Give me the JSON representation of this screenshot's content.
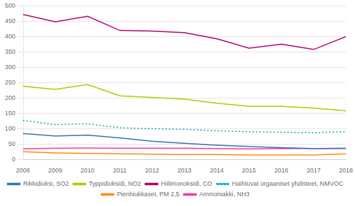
{
  "chart_data": {
    "type": "line",
    "x": [
      2008,
      2009,
      2010,
      2011,
      2012,
      2013,
      2014,
      2015,
      2016,
      2017,
      2018
    ],
    "xlim": [
      2008,
      2018
    ],
    "xticks": [
      2008,
      2009,
      2010,
      2011,
      2012,
      2013,
      2014,
      2015,
      2016,
      2017,
      2018
    ],
    "ylim": [
      0,
      500
    ],
    "yticks": [
      0,
      50,
      100,
      150,
      200,
      250,
      300,
      350,
      400,
      450,
      500
    ],
    "grid": "y",
    "legend": "bottom",
    "series": [
      {
        "name": "Rikkidioksi, SO2",
        "color": "#2E75B6",
        "line_style": "solid",
        "values": [
          84,
          76,
          79,
          70,
          59,
          52,
          46,
          42,
          38,
          35,
          36
        ]
      },
      {
        "name": "Typpidioksidi, NO2",
        "color": "#AACC00",
        "line_style": "solid",
        "values": [
          238,
          228,
          244,
          207,
          202,
          196,
          183,
          173,
          173,
          167,
          158
        ]
      },
      {
        "name": "Hiilimonoksidi, CO",
        "color": "#B5006E",
        "line_style": "solid",
        "values": [
          472,
          448,
          466,
          420,
          418,
          413,
          393,
          362,
          375,
          358,
          400
        ]
      },
      {
        "name": "Haihtuvat orgaaniset yhdisteet, NMVOC",
        "color": "#00AAAA",
        "line_style": "dotted",
        "values": [
          127,
          113,
          116,
          103,
          100,
          98,
          93,
          90,
          88,
          87,
          90
        ]
      },
      {
        "name": "Pienhiukkaset, PM 2,5",
        "color": "#FF8C00",
        "line_style": "solid",
        "values": [
          25,
          21,
          19,
          18,
          17,
          16,
          16,
          14,
          14,
          14,
          18
        ]
      },
      {
        "name": "Ammoniakki, NH3",
        "color": "#FF3399",
        "line_style": "solid",
        "values": [
          34,
          36,
          37,
          36,
          36,
          36,
          35,
          34,
          35,
          35,
          35
        ]
      }
    ]
  }
}
